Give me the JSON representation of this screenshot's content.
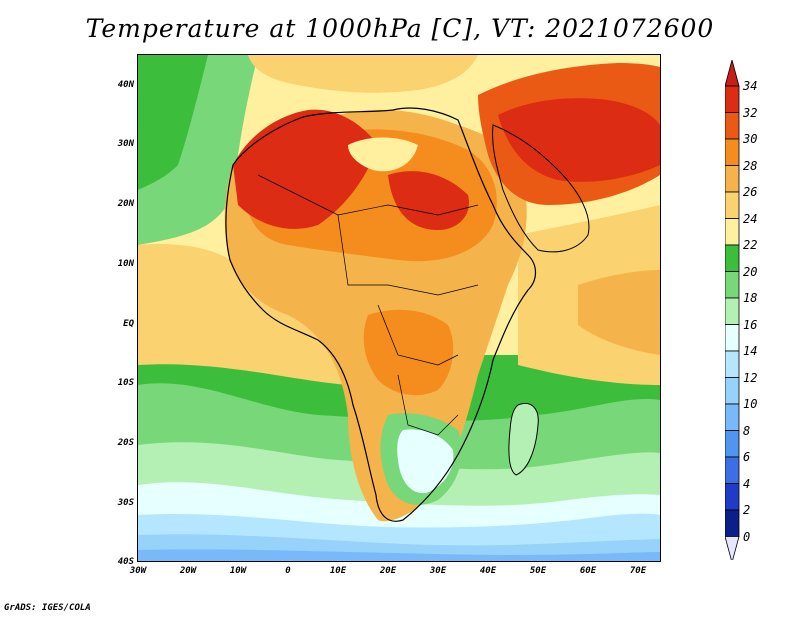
{
  "title": "Temperature at 1000hPa [C], VT: 2021072600",
  "footer": "GrADS: IGES/COLA",
  "map": {
    "lat_labels": [
      "40N",
      "30N",
      "20N",
      "10N",
      "EQ",
      "10S",
      "20S",
      "30S",
      "40S"
    ],
    "lon_labels": [
      "30W",
      "20W",
      "10W",
      "0",
      "10E",
      "20E",
      "30E",
      "40E",
      "50E",
      "60E",
      "70E"
    ],
    "lat_range_deg": [
      -40,
      45
    ],
    "lon_range_deg": [
      -30,
      75
    ]
  },
  "colorbar": {
    "unit": "C",
    "levels": [
      "34",
      "32",
      "30",
      "28",
      "26",
      "24",
      "22",
      "20",
      "18",
      "16",
      "14",
      "12",
      "10",
      "8",
      "6",
      "4",
      "2",
      "0"
    ],
    "colors": {
      "above_34": "#c81e14",
      "32_34": "#dc2c14",
      "30_32": "#eb5a14",
      "28_30": "#f58c1e",
      "26_28": "#f5b44b",
      "24_26": "#fad270",
      "22_24": "#fff0a0",
      "20_22": "#3cbe3c",
      "18_20": "#78d778",
      "16_18": "#b4f0b4",
      "14_16": "#e6ffff",
      "12_14": "#b4e6ff",
      "10_12": "#96d2fa",
      "8_10": "#78b9fa",
      "6_8": "#5096f0",
      "4_6": "#3c6ee6",
      "2_4": "#1e3cc8",
      "0_2": "#0a1e8c",
      "below_0": "#e6e6ff"
    }
  }
}
